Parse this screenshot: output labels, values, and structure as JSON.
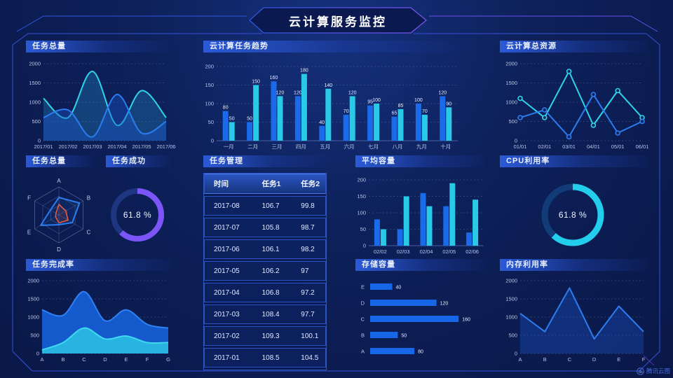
{
  "header": {
    "title": "云计算服务监控"
  },
  "watermark": {
    "label": "腾讯云图"
  },
  "panels": {
    "p1": {
      "title": "任务总量"
    },
    "p2": {
      "title": "云计算任务趋势"
    },
    "p3": {
      "title": "云计算总资源"
    },
    "p4": {
      "title": "任务总量"
    },
    "p5": {
      "title": "任务成功"
    },
    "p6": {
      "title": "任务管理"
    },
    "p7": {
      "title": "平均容量"
    },
    "p8": {
      "title": "CPU利用率"
    },
    "p9": {
      "title": "任务完成率"
    },
    "p10": {
      "title": "存储容量"
    },
    "p11": {
      "title": "内存利用率"
    }
  },
  "table": {
    "columns": [
      "时间",
      "任务1",
      "任务2"
    ],
    "rows": [
      [
        "2017-08",
        "106.7",
        "99.8"
      ],
      [
        "2017-07",
        "105.8",
        "98.7"
      ],
      [
        "2017-06",
        "106.1",
        "98.2"
      ],
      [
        "2017-05",
        "106.2",
        "97"
      ],
      [
        "2017-04",
        "106.8",
        "97.2"
      ],
      [
        "2017-03",
        "108.4",
        "97.7"
      ],
      [
        "2017-02",
        "109.3",
        "100.1"
      ],
      [
        "2017-01",
        "108.5",
        "104.5"
      ]
    ]
  },
  "chart_data": [
    {
      "id": "task_total_line",
      "type": "line",
      "title": "任务总量",
      "smooth": true,
      "markers": false,
      "area": true,
      "categories": [
        "2017/01",
        "2017/02",
        "2017/03",
        "2017/04",
        "2017/05",
        "2017/06"
      ],
      "ylim": [
        0,
        2000
      ],
      "yticks": [
        0,
        500,
        1000,
        1500,
        2000
      ],
      "series": [
        {
          "name": "cyan-series",
          "color": "#2fd4e8",
          "fill": "rgba(35,150,205,0.30)",
          "values": [
            1100,
            600,
            1800,
            400,
            1300,
            600
          ]
        },
        {
          "name": "blue-series",
          "color": "#2b7df0",
          "fill": "rgba(28,86,205,0.40)",
          "values": [
            600,
            800,
            100,
            1200,
            200,
            500
          ]
        }
      ]
    },
    {
      "id": "cloud_task_trend",
      "type": "bar",
      "title": "云计算任务趋势",
      "labels": true,
      "categories": [
        "一月",
        "二月",
        "三月",
        "四月",
        "五月",
        "六月",
        "七月",
        "八月",
        "九月",
        "十月"
      ],
      "ylim": [
        0,
        200
      ],
      "yticks": [
        0,
        50,
        100,
        150,
        200
      ],
      "series": [
        {
          "name": "任务1",
          "color": "#1a6bea",
          "values": [
            80,
            50,
            160,
            120,
            40,
            70,
            95,
            65,
            100,
            120
          ]
        },
        {
          "name": "任务2",
          "color": "#29c9e8",
          "values": [
            50,
            150,
            120,
            180,
            140,
            120,
            100,
            85,
            70,
            90
          ]
        }
      ]
    },
    {
      "id": "cloud_resource_total",
      "type": "line",
      "title": "云计算总资源",
      "smooth": false,
      "markers": true,
      "area": false,
      "categories": [
        "01/01",
        "02/01",
        "03/01",
        "04/01",
        "05/01",
        "06/01"
      ],
      "ylim": [
        0,
        2000
      ],
      "yticks": [
        0,
        500,
        1000,
        1500,
        2000
      ],
      "series": [
        {
          "name": "cyan-series",
          "color": "#2fd4e8",
          "values": [
            1100,
            600,
            1800,
            400,
            1300,
            600
          ]
        },
        {
          "name": "blue-series",
          "color": "#2b7df0",
          "values": [
            600,
            800,
            100,
            1200,
            200,
            500
          ]
        }
      ]
    },
    {
      "id": "task_radar",
      "type": "radar",
      "title": "任务总量",
      "indicators": [
        "A",
        "B",
        "C",
        "D",
        "E",
        "F"
      ],
      "max": 100,
      "series": [
        {
          "name": "blue-polygon",
          "color": "#2b7df0",
          "fill": "rgba(43,125,240,0.10)",
          "width": 2,
          "values": [
            62,
            85,
            55,
            35,
            75,
            35
          ]
        },
        {
          "name": "red-polygon",
          "color": "#f0583a",
          "fill": "rgba(240,88,58,0.12)",
          "width": 1.5,
          "values": [
            38,
            28,
            38,
            28,
            14,
            12
          ]
        }
      ]
    },
    {
      "id": "task_success_donut",
      "type": "donut",
      "title": "任务成功",
      "value": 61.8,
      "label": "61.8 %",
      "color": "#7b55f7",
      "track": "#1c3680"
    },
    {
      "id": "avg_capacity",
      "type": "bar",
      "title": "平均容量",
      "labels": false,
      "categories": [
        "02/02",
        "02/03",
        "02/04",
        "02/05",
        "02/06"
      ],
      "ylim": [
        0,
        200
      ],
      "yticks": [
        0,
        50,
        100,
        150,
        200
      ],
      "series": [
        {
          "name": "blue-series",
          "color": "#1a6bea",
          "values": [
            80,
            50,
            160,
            120,
            40
          ]
        },
        {
          "name": "cyan-series",
          "color": "#29c9e8",
          "values": [
            50,
            150,
            120,
            190,
            140
          ]
        }
      ]
    },
    {
      "id": "cpu_donut",
      "type": "donut",
      "title": "CPU利用率",
      "value": 61.8,
      "label": "61.8 %",
      "color": "#23cdec",
      "track": "#123c78"
    },
    {
      "id": "task_completion",
      "type": "line",
      "title": "任务完成率",
      "smooth": true,
      "markers": false,
      "area": true,
      "categories": [
        "A",
        "B",
        "C",
        "D",
        "E",
        "F",
        "G"
      ],
      "ylim": [
        0,
        2000
      ],
      "yticks": [
        0,
        500,
        1000,
        1500,
        2000
      ],
      "series": [
        {
          "name": "blue-area",
          "color": "#2f80f2",
          "fill": "rgba(22,95,215,0.92)",
          "values": [
            1200,
            1050,
            1700,
            900,
            1200,
            800,
            700
          ]
        },
        {
          "name": "cyan-area",
          "color": "#3fd8f0",
          "fill": "rgba(41,185,224,0.95)",
          "values": [
            100,
            300,
            700,
            400,
            480,
            300,
            300
          ]
        }
      ]
    },
    {
      "id": "storage_capacity",
      "type": "hbar",
      "title": "存储容量",
      "categories": [
        "E",
        "D",
        "C",
        "B",
        "A"
      ],
      "values": [
        40,
        120,
        160,
        50,
        80
      ],
      "xmax": 175,
      "color": "#1667e8"
    },
    {
      "id": "memory_util",
      "type": "line",
      "title": "内存利用率",
      "smooth": false,
      "markers": false,
      "area": true,
      "categories": [
        "A",
        "B",
        "C",
        "D",
        "E",
        "F"
      ],
      "ylim": [
        0,
        2000
      ],
      "yticks": [
        0,
        500,
        1000,
        1500,
        2000
      ],
      "series": [
        {
          "name": "blue-series",
          "color": "#2b7df0",
          "fill": "rgba(28,86,205,0.35)",
          "values": [
            1100,
            600,
            1800,
            400,
            1300,
            600
          ]
        }
      ]
    }
  ]
}
